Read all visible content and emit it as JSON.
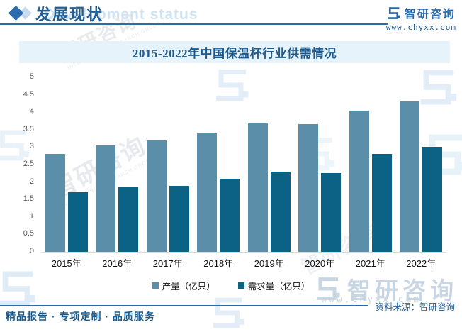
{
  "header": {
    "section_title": "发展现状",
    "background_watermark": "Development status",
    "brand": {
      "name": "智研咨询",
      "url": "www.chyxx.com"
    }
  },
  "chart_data": {
    "type": "bar",
    "title": "2015-2022年中国保温杯行业供需情况",
    "categories": [
      "2015年",
      "2016年",
      "2017年",
      "2018年",
      "2019年",
      "2020年",
      "2021年",
      "2022年"
    ],
    "series": [
      {
        "name": "产量（亿只）",
        "color": "#5b8fa9",
        "values": [
          2.8,
          3.05,
          3.2,
          3.4,
          3.7,
          3.65,
          4.05,
          4.3
        ]
      },
      {
        "name": "需求量（亿只）",
        "color": "#0c6284",
        "values": [
          1.7,
          1.85,
          1.9,
          2.1,
          2.3,
          2.25,
          2.8,
          3.0
        ]
      }
    ],
    "ylim": [
      0,
      5
    ],
    "yticks": [
      0,
      0.5,
      1,
      1.5,
      2,
      2.5,
      3,
      3.5,
      4,
      4.5,
      5
    ],
    "grid": false,
    "legend_position": "bottom"
  },
  "footer": {
    "tagline": "精品报告 · 专项定制 · 品质服务",
    "source": "资料来源：智研咨询"
  },
  "watermarks": {
    "diagonal_text": "智研咨询",
    "diagonal_subtext": "INTELLIGENCE RESEARCH GROUP",
    "bottom_logo_text": "智研咨询",
    "bottom_logo_url": "www.chyxx.com"
  },
  "colors": {
    "accent_blue": "#215f94",
    "band_background": "#e7f3fa",
    "axis_gray": "#d9d9d9",
    "tick_gray": "#595959",
    "bar_production": "#5b8fa9",
    "bar_demand": "#0c6284"
  }
}
